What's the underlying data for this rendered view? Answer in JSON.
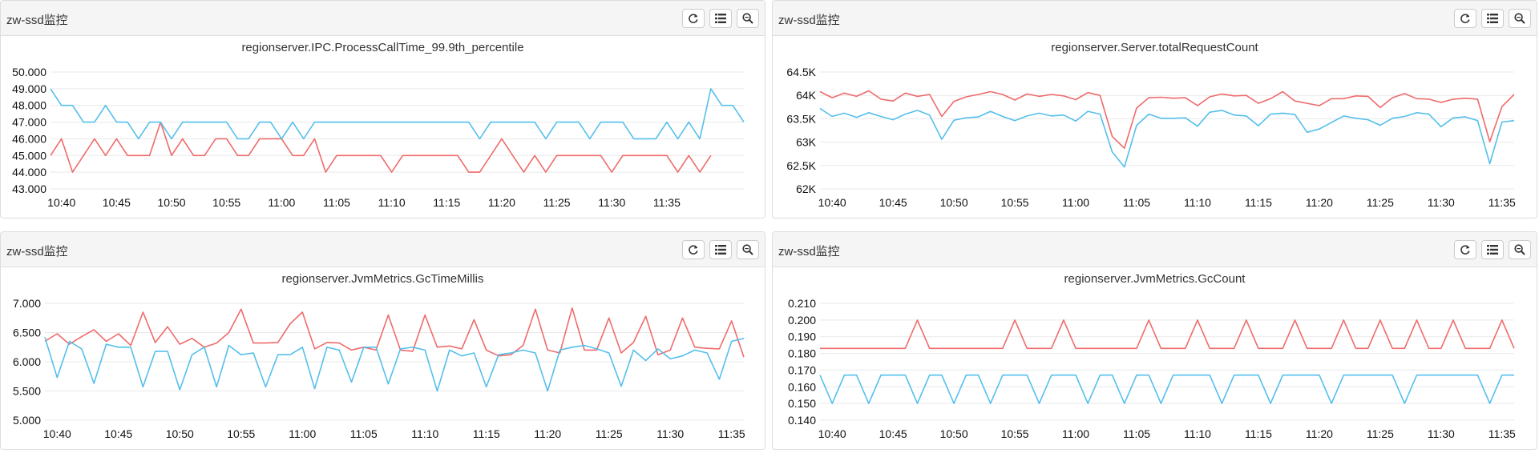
{
  "colors": {
    "series_red": "#ef6b6b",
    "series_blue": "#55bfec",
    "grid": "#e9e9e9"
  },
  "toolbar_icons": [
    "refresh-icon",
    "list-icon",
    "zoom-icon"
  ],
  "panels": [
    {
      "header": "zw-ssd监控",
      "chart_data": {
        "type": "line",
        "title": "regionserver.IPC.ProcessCallTime_99.9th_percentile",
        "x_ticks": [
          "10:40",
          "10:45",
          "10:50",
          "10:55",
          "11:00",
          "11:05",
          "11:10",
          "11:15",
          "11:20",
          "11:25",
          "11:30",
          "11:35"
        ],
        "y_ticks": [
          "50.000",
          "49.000",
          "48.000",
          "47.000",
          "46.000",
          "45.000",
          "44.000",
          "43.000"
        ],
        "ylim": [
          43,
          50
        ],
        "x_start": "10:39",
        "x_interval_min": 1,
        "series": [
          {
            "color": "red",
            "values": [
              45,
              46,
              44,
              45,
              46,
              45,
              46,
              45,
              45,
              45,
              47,
              45,
              46,
              45,
              45,
              46,
              46,
              45,
              45,
              46,
              46,
              46,
              45,
              45,
              46,
              44,
              45,
              45,
              45,
              45,
              45,
              44,
              45,
              45,
              45,
              45,
              45,
              45,
              44,
              44,
              45,
              46,
              45,
              44,
              45,
              44,
              45,
              45,
              45,
              45,
              45,
              44,
              45,
              45,
              45,
              45,
              45,
              44,
              45,
              44,
              45
            ]
          },
          {
            "color": "blue",
            "values": [
              49,
              48,
              48,
              47,
              47,
              48,
              47,
              47,
              46,
              47,
              47,
              46,
              47,
              47,
              47,
              47,
              47,
              46,
              46,
              47,
              47,
              46,
              47,
              46,
              47,
              47,
              47,
              47,
              47,
              47,
              47,
              47,
              47,
              47,
              47,
              47,
              47,
              47,
              47,
              46,
              47,
              47,
              47,
              47,
              47,
              46,
              47,
              47,
              47,
              46,
              47,
              47,
              47,
              46,
              46,
              46,
              47,
              46,
              47,
              46,
              49,
              48,
              48,
              47
            ]
          }
        ]
      }
    },
    {
      "header": "zw-ssd监控",
      "chart_data": {
        "type": "line",
        "title": "regionserver.Server.totalRequestCount",
        "x_ticks": [
          "10:40",
          "10:45",
          "10:50",
          "10:55",
          "11:00",
          "11:05",
          "11:10",
          "11:15",
          "11:20",
          "11:25",
          "11:30",
          "11:35"
        ],
        "y_ticks": [
          "64.5K",
          "64K",
          "63.5K",
          "63K",
          "62.5K",
          "62K"
        ],
        "ylim": [
          62000,
          64500
        ],
        "x_start": "10:39",
        "x_interval_min": 1,
        "series": [
          {
            "color": "red",
            "values": [
              64080,
              63950,
              64050,
              63980,
              64100,
              63920,
              63880,
              64050,
              63980,
              64020,
              63550,
              63870,
              63970,
              64020,
              64080,
              64020,
              63900,
              64030,
              63980,
              64020,
              63990,
              63910,
              64060,
              64000,
              63120,
              62870,
              63730,
              63950,
              63960,
              63940,
              63950,
              63780,
              63970,
              64030,
              63990,
              64000,
              63830,
              63930,
              64080,
              63880,
              63830,
              63780,
              63930,
              63930,
              63990,
              63980,
              63740,
              63950,
              64040,
              63930,
              63920,
              63850,
              63920,
              63940,
              63920,
              63010,
              63760,
              64020
            ]
          },
          {
            "color": "blue",
            "values": [
              63720,
              63550,
              63620,
              63530,
              63630,
              63550,
              63480,
              63600,
              63680,
              63580,
              63060,
              63470,
              63520,
              63540,
              63660,
              63550,
              63460,
              63560,
              63620,
              63560,
              63580,
              63450,
              63660,
              63600,
              62790,
              62470,
              63360,
              63600,
              63510,
              63510,
              63520,
              63340,
              63640,
              63680,
              63580,
              63560,
              63350,
              63600,
              63620,
              63590,
              63210,
              63280,
              63420,
              63560,
              63510,
              63480,
              63360,
              63510,
              63550,
              63630,
              63600,
              63330,
              63520,
              63540,
              63460,
              62540,
              63430,
              63460
            ]
          }
        ]
      }
    },
    {
      "header": "zw-ssd监控",
      "chart_data": {
        "type": "line",
        "title": "regionserver.JvmMetrics.GcTimeMillis",
        "x_ticks": [
          "10:40",
          "10:45",
          "10:50",
          "10:55",
          "11:00",
          "11:05",
          "11:10",
          "11:15",
          "11:20",
          "11:25",
          "11:30",
          "11:35"
        ],
        "y_ticks": [
          "7.000",
          "6.500",
          "6.000",
          "5.500",
          "5.000"
        ],
        "ylim": [
          5,
          7
        ],
        "x_start": "10:39",
        "x_interval_min": 1,
        "series": [
          {
            "color": "red",
            "values": [
              6.35,
              6.48,
              6.3,
              6.43,
              6.55,
              6.35,
              6.48,
              6.28,
              6.85,
              6.33,
              6.6,
              6.3,
              6.4,
              6.25,
              6.32,
              6.5,
              6.9,
              6.32,
              6.32,
              6.33,
              6.65,
              6.85,
              6.22,
              6.33,
              6.32,
              6.2,
              6.25,
              6.2,
              6.8,
              6.2,
              6.18,
              6.8,
              6.25,
              6.27,
              6.22,
              6.72,
              6.2,
              6.1,
              6.12,
              6.28,
              6.9,
              6.2,
              6.15,
              6.92,
              6.2,
              6.2,
              6.75,
              6.15,
              6.33,
              6.78,
              6.12,
              6.2,
              6.75,
              6.25,
              6.23,
              6.22,
              6.7,
              6.08
            ]
          },
          {
            "color": "blue",
            "values": [
              6.42,
              5.73,
              6.35,
              6.22,
              5.63,
              6.3,
              6.25,
              6.25,
              5.57,
              6.18,
              6.18,
              5.52,
              6.12,
              6.25,
              5.57,
              6.28,
              6.12,
              6.15,
              5.57,
              6.12,
              6.12,
              6.25,
              5.54,
              6.25,
              6.2,
              5.65,
              6.25,
              6.25,
              5.62,
              6.22,
              6.25,
              6.2,
              5.5,
              6.2,
              6.1,
              6.15,
              5.57,
              6.12,
              6.15,
              6.2,
              6.15,
              5.5,
              6.2,
              6.25,
              6.28,
              6.22,
              6.15,
              5.58,
              6.2,
              6.02,
              6.22,
              6.05,
              6.1,
              6.2,
              6.15,
              5.7,
              6.35,
              6.4
            ]
          }
        ]
      }
    },
    {
      "header": "zw-ssd监控",
      "chart_data": {
        "type": "line",
        "title": "regionserver.JvmMetrics.GcCount",
        "x_ticks": [
          "10:40",
          "10:45",
          "10:50",
          "10:55",
          "11:00",
          "11:05",
          "11:10",
          "11:15",
          "11:20",
          "11:25",
          "11:30",
          "11:35"
        ],
        "y_ticks": [
          "0.210",
          "0.200",
          "0.190",
          "0.180",
          "0.170",
          "0.160",
          "0.150",
          "0.140"
        ],
        "ylim": [
          0.14,
          0.21
        ],
        "x_start": "10:39",
        "x_interval_min": 1,
        "series": [
          {
            "color": "red",
            "values": [
              0.183,
              0.183,
              0.183,
              0.183,
              0.183,
              0.183,
              0.183,
              0.183,
              0.2,
              0.183,
              0.183,
              0.183,
              0.183,
              0.183,
              0.183,
              0.183,
              0.2,
              0.183,
              0.183,
              0.183,
              0.2,
              0.183,
              0.183,
              0.183,
              0.183,
              0.183,
              0.183,
              0.2,
              0.183,
              0.183,
              0.183,
              0.2,
              0.183,
              0.183,
              0.183,
              0.2,
              0.183,
              0.183,
              0.183,
              0.2,
              0.183,
              0.183,
              0.183,
              0.2,
              0.183,
              0.183,
              0.2,
              0.183,
              0.183,
              0.2,
              0.183,
              0.183,
              0.2,
              0.183,
              0.183,
              0.183,
              0.2,
              0.183
            ]
          },
          {
            "color": "blue",
            "values": [
              0.167,
              0.15,
              0.167,
              0.167,
              0.15,
              0.167,
              0.167,
              0.167,
              0.15,
              0.167,
              0.167,
              0.15,
              0.167,
              0.167,
              0.15,
              0.167,
              0.167,
              0.167,
              0.15,
              0.167,
              0.167,
              0.167,
              0.15,
              0.167,
              0.167,
              0.15,
              0.167,
              0.167,
              0.15,
              0.167,
              0.167,
              0.167,
              0.167,
              0.15,
              0.167,
              0.167,
              0.167,
              0.15,
              0.167,
              0.167,
              0.167,
              0.167,
              0.15,
              0.167,
              0.167,
              0.167,
              0.167,
              0.167,
              0.15,
              0.167,
              0.167,
              0.167,
              0.167,
              0.167,
              0.167,
              0.15,
              0.167,
              0.167
            ]
          }
        ]
      }
    }
  ]
}
